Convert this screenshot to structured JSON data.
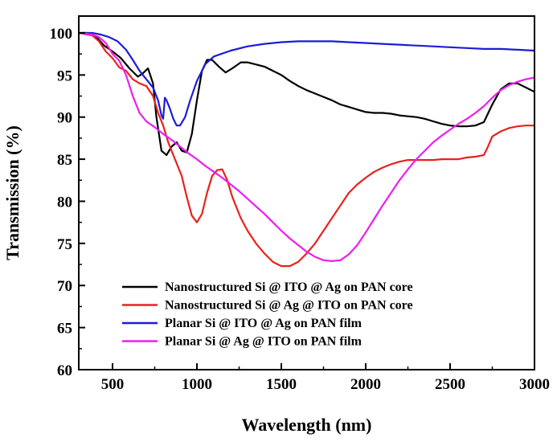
{
  "chart_data": {
    "type": "line",
    "title": "",
    "xlabel": "Wavelength (nm)",
    "ylabel": "Transmission (%)",
    "xlim": [
      300,
      3000
    ],
    "ylim": [
      60,
      102
    ],
    "xticks": [
      500,
      1000,
      1500,
      2000,
      2500,
      3000
    ],
    "xtick_labels": [
      "500",
      "1000",
      "1500",
      "2000",
      "2500",
      "3000"
    ],
    "yticks": [
      60,
      65,
      70,
      75,
      80,
      85,
      90,
      95,
      100
    ],
    "ytick_labels": [
      "60",
      "65",
      "70",
      "75",
      "80",
      "85",
      "90",
      "95",
      "100"
    ],
    "grid": false,
    "legend_position": "bottom-center",
    "series": [
      {
        "name": "Nanostructured Si @ ITO @ Ag on PAN core",
        "color": "#000000",
        "points": [
          [
            300,
            100
          ],
          [
            350,
            100
          ],
          [
            400,
            99.6
          ],
          [
            450,
            98.5
          ],
          [
            500,
            97.8
          ],
          [
            550,
            97
          ],
          [
            600,
            95.8
          ],
          [
            650,
            94.8
          ],
          [
            680,
            95.2
          ],
          [
            710,
            95.8
          ],
          [
            740,
            94
          ],
          [
            760,
            90
          ],
          [
            790,
            86
          ],
          [
            820,
            85.5
          ],
          [
            850,
            86.5
          ],
          [
            880,
            87
          ],
          [
            910,
            86
          ],
          [
            940,
            85.8
          ],
          [
            970,
            88
          ],
          [
            1000,
            92
          ],
          [
            1030,
            95.5
          ],
          [
            1060,
            96.8
          ],
          [
            1090,
            96.8
          ],
          [
            1130,
            96
          ],
          [
            1170,
            95.3
          ],
          [
            1210,
            95.8
          ],
          [
            1260,
            96.5
          ],
          [
            1300,
            96.5
          ],
          [
            1400,
            96
          ],
          [
            1450,
            95.5
          ],
          [
            1500,
            95
          ],
          [
            1550,
            94.3
          ],
          [
            1600,
            93.7
          ],
          [
            1650,
            93.2
          ],
          [
            1700,
            92.8
          ],
          [
            1750,
            92.4
          ],
          [
            1800,
            92
          ],
          [
            1850,
            91.5
          ],
          [
            1900,
            91.2
          ],
          [
            1950,
            90.9
          ],
          [
            2000,
            90.6
          ],
          [
            2050,
            90.5
          ],
          [
            2100,
            90.5
          ],
          [
            2150,
            90.4
          ],
          [
            2200,
            90.2
          ],
          [
            2250,
            90.1
          ],
          [
            2300,
            90
          ],
          [
            2350,
            89.8
          ],
          [
            2400,
            89.5
          ],
          [
            2450,
            89.2
          ],
          [
            2500,
            89
          ],
          [
            2550,
            88.9
          ],
          [
            2600,
            88.9
          ],
          [
            2650,
            89
          ],
          [
            2700,
            89.4
          ],
          [
            2750,
            91.5
          ],
          [
            2800,
            93.3
          ],
          [
            2850,
            94
          ],
          [
            2900,
            94
          ],
          [
            2950,
            93.5
          ],
          [
            3000,
            93
          ]
        ]
      },
      {
        "name": "Nanostructured Si @ Ag @ ITO on PAN core",
        "color": "#e8221c",
        "points": [
          [
            300,
            100
          ],
          [
            380,
            99.7
          ],
          [
            420,
            99
          ],
          [
            460,
            97.8
          ],
          [
            500,
            97
          ],
          [
            540,
            95.9
          ],
          [
            580,
            95.5
          ],
          [
            620,
            94.5
          ],
          [
            660,
            94
          ],
          [
            700,
            93.7
          ],
          [
            740,
            92.5
          ],
          [
            770,
            90.5
          ],
          [
            800,
            89
          ],
          [
            830,
            87
          ],
          [
            870,
            85
          ],
          [
            910,
            83
          ],
          [
            940,
            80.5
          ],
          [
            970,
            78.3
          ],
          [
            1000,
            77.5
          ],
          [
            1030,
            78.5
          ],
          [
            1060,
            81
          ],
          [
            1090,
            83
          ],
          [
            1120,
            83.7
          ],
          [
            1150,
            83.8
          ],
          [
            1180,
            82.5
          ],
          [
            1210,
            80.5
          ],
          [
            1260,
            78
          ],
          [
            1300,
            76.5
          ],
          [
            1350,
            75
          ],
          [
            1400,
            73.8
          ],
          [
            1450,
            72.8
          ],
          [
            1500,
            72.3
          ],
          [
            1550,
            72.3
          ],
          [
            1600,
            72.8
          ],
          [
            1650,
            73.8
          ],
          [
            1700,
            75
          ],
          [
            1750,
            76.5
          ],
          [
            1800,
            78
          ],
          [
            1850,
            79.5
          ],
          [
            1900,
            81
          ],
          [
            1950,
            82
          ],
          [
            2000,
            82.8
          ],
          [
            2050,
            83.5
          ],
          [
            2100,
            84
          ],
          [
            2150,
            84.4
          ],
          [
            2200,
            84.7
          ],
          [
            2250,
            84.9
          ],
          [
            2300,
            84.9
          ],
          [
            2350,
            84.9
          ],
          [
            2400,
            84.9
          ],
          [
            2450,
            85
          ],
          [
            2500,
            85
          ],
          [
            2550,
            85
          ],
          [
            2600,
            85.2
          ],
          [
            2650,
            85.3
          ],
          [
            2700,
            85.5
          ],
          [
            2720,
            86.3
          ],
          [
            2750,
            87.7
          ],
          [
            2800,
            88.3
          ],
          [
            2850,
            88.7
          ],
          [
            2900,
            88.9
          ],
          [
            2950,
            89
          ],
          [
            3000,
            89
          ]
        ]
      },
      {
        "name": "Planar Si @ ITO @ Ag on PAN film",
        "color": "#1c1cd8",
        "points": [
          [
            300,
            100
          ],
          [
            380,
            100
          ],
          [
            430,
            99.8
          ],
          [
            480,
            99.5
          ],
          [
            530,
            99
          ],
          [
            580,
            98
          ],
          [
            620,
            96.8
          ],
          [
            660,
            95.5
          ],
          [
            700,
            94.5
          ],
          [
            740,
            93.5
          ],
          [
            770,
            92
          ],
          [
            790,
            90.2
          ],
          [
            800,
            89.8
          ],
          [
            810,
            92.3
          ],
          [
            820,
            92
          ],
          [
            840,
            91
          ],
          [
            860,
            89.8
          ],
          [
            880,
            89
          ],
          [
            900,
            89
          ],
          [
            930,
            90
          ],
          [
            960,
            92
          ],
          [
            1000,
            94.3
          ],
          [
            1050,
            96.3
          ],
          [
            1100,
            97.2
          ],
          [
            1200,
            97.9
          ],
          [
            1300,
            98.4
          ],
          [
            1400,
            98.7
          ],
          [
            1500,
            98.9
          ],
          [
            1600,
            99
          ],
          [
            1700,
            99
          ],
          [
            1800,
            99
          ],
          [
            1900,
            98.9
          ],
          [
            2000,
            98.8
          ],
          [
            2100,
            98.7
          ],
          [
            2200,
            98.6
          ],
          [
            2300,
            98.5
          ],
          [
            2400,
            98.4
          ],
          [
            2500,
            98.3
          ],
          [
            2600,
            98.2
          ],
          [
            2700,
            98.1
          ],
          [
            2800,
            98.1
          ],
          [
            2900,
            98
          ],
          [
            3000,
            97.9
          ]
        ]
      },
      {
        "name": "Planar Si @ Ag @ ITO on PAN film",
        "color": "#f01cf0",
        "points": [
          [
            300,
            100
          ],
          [
            380,
            99.8
          ],
          [
            420,
            99.5
          ],
          [
            460,
            98.8
          ],
          [
            500,
            97.5
          ],
          [
            540,
            96.7
          ],
          [
            580,
            95
          ],
          [
            620,
            92.5
          ],
          [
            660,
            90.5
          ],
          [
            700,
            89.5
          ],
          [
            750,
            88.8
          ],
          [
            800,
            88
          ],
          [
            850,
            87.3
          ],
          [
            900,
            86.5
          ],
          [
            950,
            85.7
          ],
          [
            1000,
            85
          ],
          [
            1050,
            84.2
          ],
          [
            1100,
            83.5
          ],
          [
            1150,
            82.8
          ],
          [
            1200,
            82
          ],
          [
            1250,
            81.2
          ],
          [
            1300,
            80.3
          ],
          [
            1350,
            79.4
          ],
          [
            1400,
            78.5
          ],
          [
            1450,
            77.5
          ],
          [
            1500,
            76.5
          ],
          [
            1550,
            75.6
          ],
          [
            1600,
            74.8
          ],
          [
            1650,
            74
          ],
          [
            1700,
            73.4
          ],
          [
            1750,
            73
          ],
          [
            1800,
            72.9
          ],
          [
            1850,
            73
          ],
          [
            1900,
            73.7
          ],
          [
            1950,
            74.8
          ],
          [
            2000,
            76.3
          ],
          [
            2050,
            77.9
          ],
          [
            2100,
            79.5
          ],
          [
            2150,
            81
          ],
          [
            2200,
            82.5
          ],
          [
            2250,
            83.8
          ],
          [
            2300,
            85
          ],
          [
            2350,
            86
          ],
          [
            2400,
            87
          ],
          [
            2450,
            87.8
          ],
          [
            2500,
            88.5
          ],
          [
            2550,
            89.2
          ],
          [
            2600,
            89.8
          ],
          [
            2650,
            90.5
          ],
          [
            2700,
            91.3
          ],
          [
            2750,
            92.3
          ],
          [
            2800,
            93.2
          ],
          [
            2850,
            93.8
          ],
          [
            2900,
            94.2
          ],
          [
            2950,
            94.5
          ],
          [
            3000,
            94.7
          ]
        ]
      }
    ]
  }
}
